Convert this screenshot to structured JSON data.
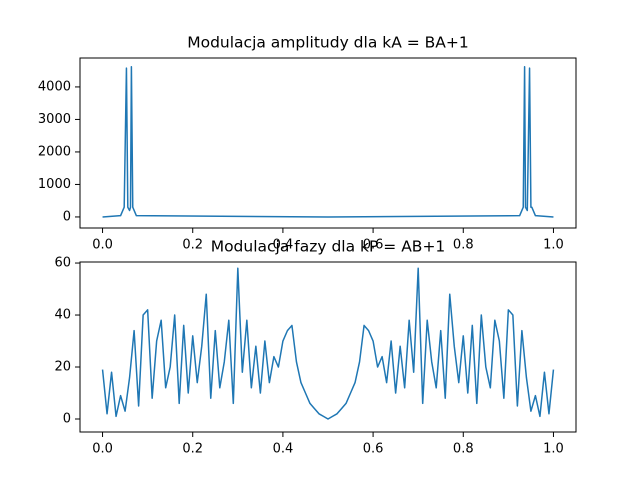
{
  "chart_data": [
    {
      "type": "line",
      "title": "Modulacja amplitudy dla kA = BA+1",
      "x": [
        0,
        0.04,
        0.048,
        0.053,
        0.056,
        0.06,
        0.062,
        0.064,
        0.067,
        0.075,
        0.5,
        0.925,
        0.933,
        0.936,
        0.938,
        0.942,
        0.947,
        0.95,
        0.952,
        0.96,
        1.0
      ],
      "values": [
        0,
        40,
        300,
        4580,
        300,
        200,
        300,
        4620,
        300,
        40,
        0,
        40,
        300,
        4620,
        300,
        200,
        4580,
        300,
        300,
        40,
        0
      ],
      "color": "#1f77b4",
      "xlim": [
        -0.05,
        1.05
      ],
      "xticks": [
        {
          "value": 0,
          "label": "0.0"
        },
        0.2,
        0.4,
        0.6,
        0.8,
        {
          "value": 1,
          "label": "1.0"
        }
      ],
      "ylim": [
        -340,
        4890
      ],
      "yticks": [
        0,
        1000,
        2000,
        3000,
        4000
      ]
    },
    {
      "type": "line",
      "title": "Modulacja fazy dla kP = AB+1",
      "x": [
        0,
        0.01,
        0.02,
        0.03,
        0.04,
        0.05,
        0.06,
        0.07,
        0.08,
        0.09,
        0.1,
        0.11,
        0.12,
        0.13,
        0.14,
        0.15,
        0.16,
        0.17,
        0.18,
        0.19,
        0.2,
        0.21,
        0.22,
        0.23,
        0.24,
        0.25,
        0.26,
        0.27,
        0.28,
        0.29,
        0.3,
        0.31,
        0.32,
        0.33,
        0.34,
        0.35,
        0.36,
        0.37,
        0.38,
        0.39,
        0.4,
        0.41,
        0.42,
        0.43,
        0.44,
        0.45,
        0.46,
        0.47,
        0.48,
        0.49,
        0.5,
        0.51,
        0.52,
        0.53,
        0.54,
        0.55,
        0.56,
        0.57,
        0.58,
        0.59,
        0.6,
        0.61,
        0.62,
        0.63,
        0.64,
        0.65,
        0.66,
        0.67,
        0.68,
        0.69,
        0.7,
        0.71,
        0.72,
        0.73,
        0.74,
        0.75,
        0.76,
        0.77,
        0.78,
        0.79,
        0.8,
        0.81,
        0.82,
        0.83,
        0.84,
        0.85,
        0.86,
        0.87,
        0.88,
        0.89,
        0.9,
        0.91,
        0.92,
        0.93,
        0.94,
        0.95,
        0.96,
        0.97,
        0.98,
        0.99,
        1.0
      ],
      "values": [
        19,
        2,
        18,
        1,
        9,
        3,
        16,
        34,
        5,
        40,
        42,
        8,
        30,
        38,
        12,
        20,
        40,
        6,
        36,
        10,
        32,
        14,
        28,
        48,
        8,
        34,
        12,
        22,
        38,
        6,
        58,
        18,
        38,
        12,
        28,
        10,
        30,
        14,
        24,
        20,
        30,
        34,
        36,
        22,
        14,
        10,
        6,
        4,
        2,
        1,
        0,
        1,
        2,
        4,
        6,
        10,
        14,
        22,
        36,
        34,
        30,
        20,
        24,
        14,
        30,
        10,
        28,
        12,
        38,
        18,
        58,
        6,
        38,
        22,
        12,
        34,
        8,
        48,
        28,
        14,
        32,
        10,
        36,
        6,
        40,
        20,
        12,
        38,
        30,
        8,
        42,
        40,
        5,
        34,
        16,
        3,
        9,
        1,
        18,
        2,
        19
      ],
      "color": "#1f77b4",
      "xlim": [
        -0.05,
        1.05
      ],
      "xticks": [
        {
          "value": 0,
          "label": "0.0"
        },
        0.2,
        0.4,
        0.6,
        0.8,
        {
          "value": 1,
          "label": "1.0"
        }
      ],
      "ylim": [
        -5,
        60.4
      ],
      "yticks": [
        0,
        20,
        40,
        60
      ]
    }
  ]
}
